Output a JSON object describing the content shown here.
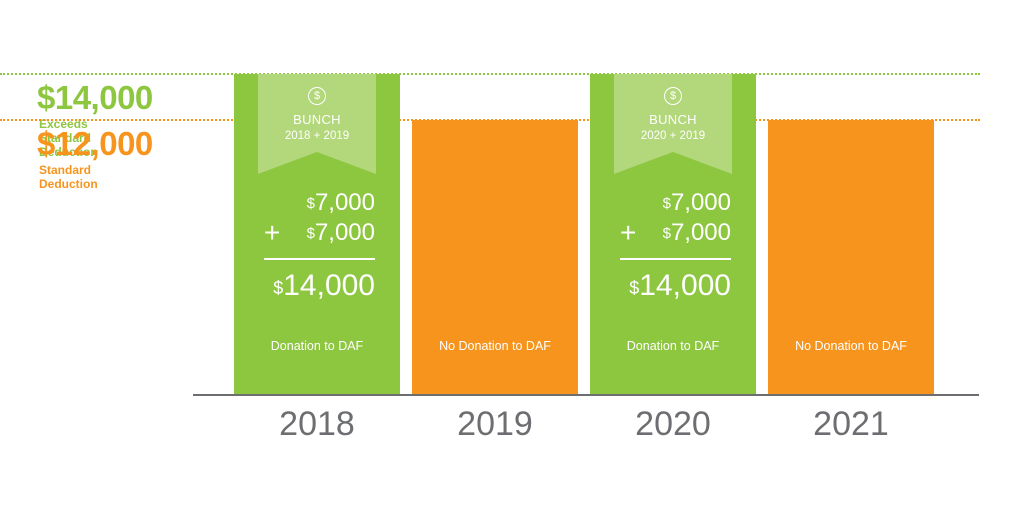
{
  "chart_data": {
    "type": "bar",
    "title": "",
    "xlabel": "",
    "ylabel": "",
    "categories": [
      "2018",
      "2019",
      "2020",
      "2021"
    ],
    "values": [
      14000,
      12000,
      14000,
      12000
    ],
    "ylim": [
      0,
      14000
    ],
    "grid": false,
    "bar_labels": [
      "Donation to DAF",
      "No Donation to DAF",
      "Donation to DAF",
      "No Donation to DAF"
    ],
    "reference_lines": [
      {
        "value": 14000,
        "value_label": "$14,000",
        "caption": "Exceeds Standard Deduction",
        "color": "#8dc63f"
      },
      {
        "value": 12000,
        "value_label": "$12,000",
        "caption": "Standard Deduction",
        "color": "#f7941d"
      }
    ],
    "bunch_annotations": [
      {
        "bar_index": 0,
        "title": "BUNCH",
        "subtitle": "2018 + 2019",
        "icon": "dollar-circle-icon",
        "addend1": "7,000",
        "addend2": "7,000",
        "total": "14,000",
        "currency": "$",
        "operator": "+"
      },
      {
        "bar_index": 2,
        "title": "BUNCH",
        "subtitle": "2020 + 2019",
        "icon": "dollar-circle-icon",
        "addend1": "7,000",
        "addend2": "7,000",
        "total": "14,000",
        "currency": "$",
        "operator": "+"
      }
    ],
    "colors": {
      "donation": "#8dc63f",
      "no_donation": "#f7941d",
      "ribbon": "#b3d77b",
      "axis": "#6d6e71",
      "year_text": "#6d6e71"
    }
  }
}
